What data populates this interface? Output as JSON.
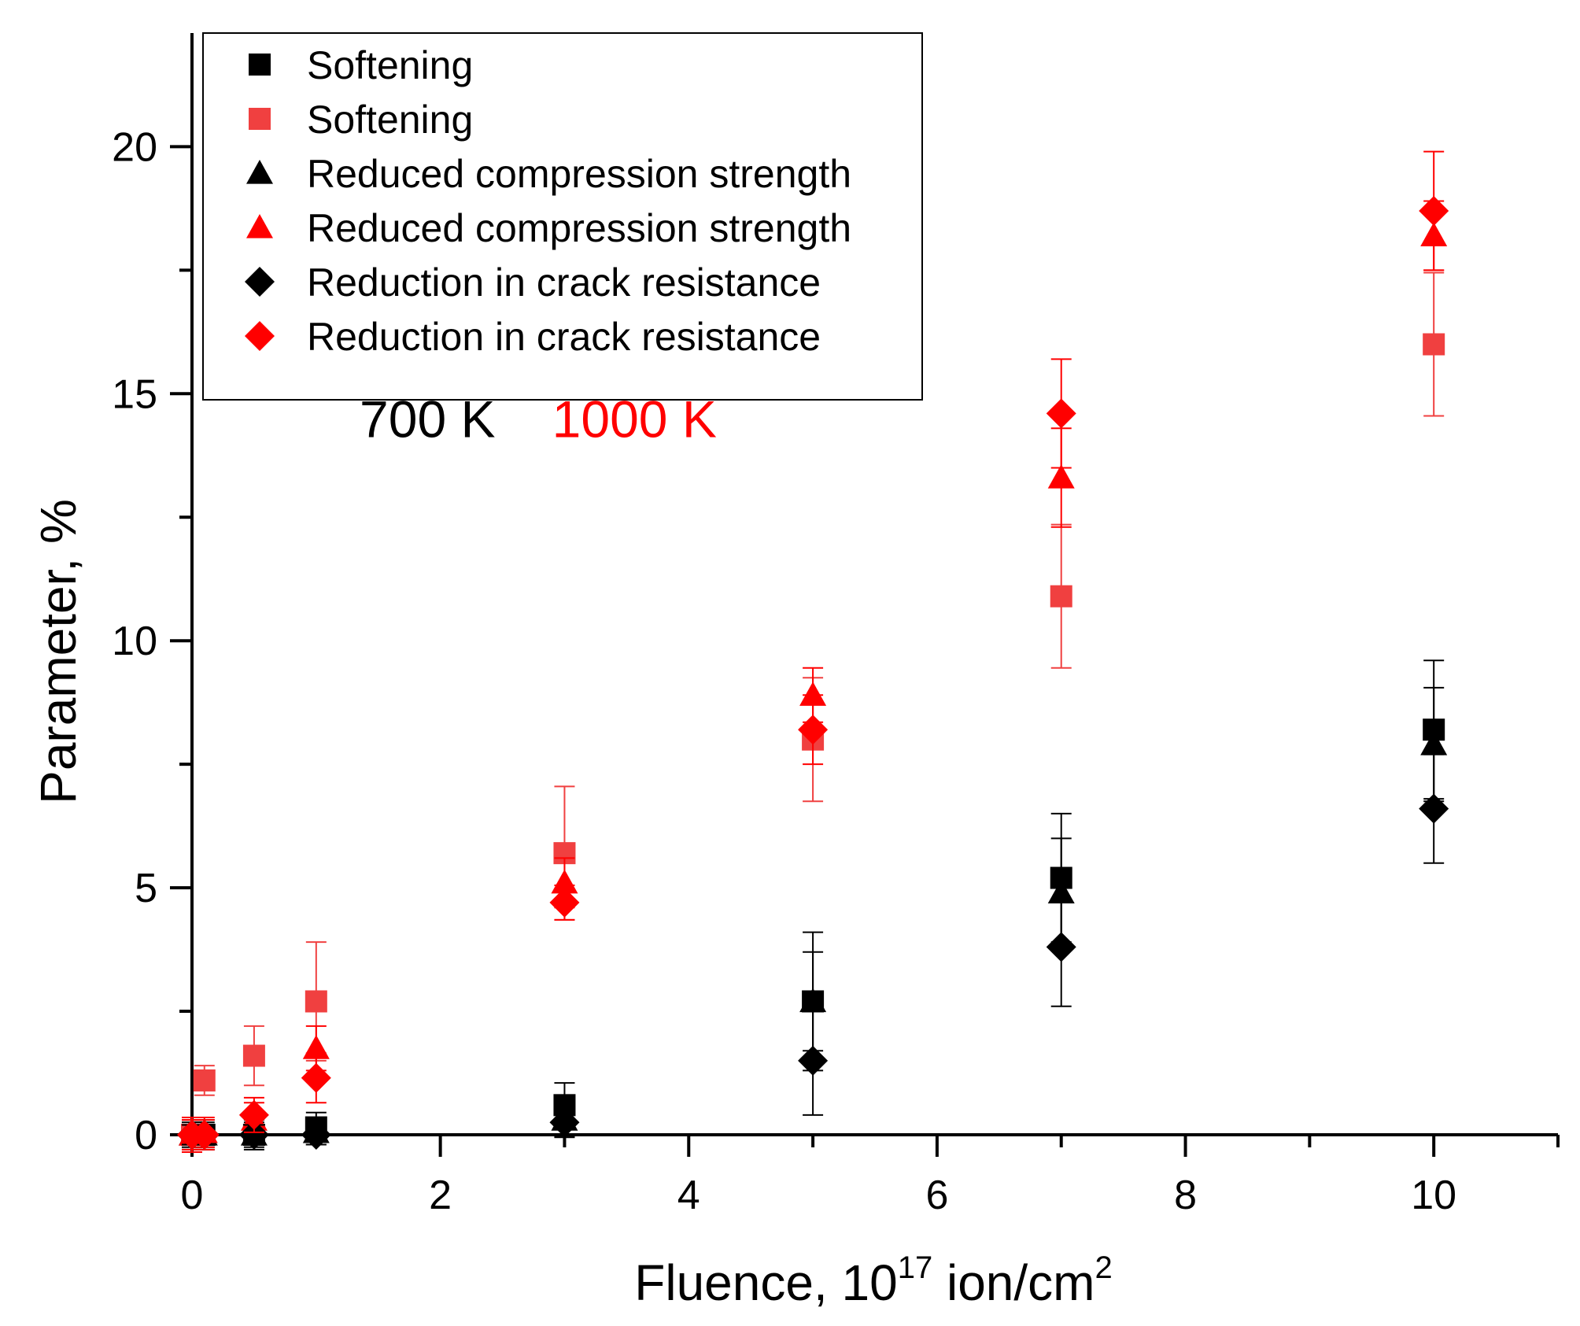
{
  "chart_data": {
    "type": "scatter",
    "xlabel": "Fluence, 10",
    "xlabel_sup": "17",
    "xlabel_mid": " ion/cm",
    "xlabel_sup2": "2",
    "ylabel": "Parameter, %",
    "xlim": [
      0,
      11
    ],
    "ylim": [
      0,
      22.3
    ],
    "x_ticks": [
      0,
      2,
      4,
      6,
      8,
      10
    ],
    "y_ticks": [
      0,
      5,
      10,
      15,
      20
    ],
    "grid": false,
    "legend_position": "top-left",
    "annotations": [
      {
        "text": "700 K",
        "color": "#000000",
        "x": 1.35,
        "y": 14.5
      },
      {
        "text": "1000 K",
        "color": "#ff0000",
        "x": 2.9,
        "y": 14.5
      }
    ],
    "series": [
      {
        "name": "Softening",
        "marker": "square",
        "color": "#000000",
        "x": [
          0,
          0.1,
          0.5,
          1,
          3,
          5,
          7,
          10
        ],
        "y": [
          0,
          0,
          0,
          0.15,
          0.6,
          2.7,
          5.2,
          8.2
        ],
        "err": [
          0.3,
          0.3,
          0.3,
          0.3,
          0.45,
          1.4,
          1.3,
          1.4
        ]
      },
      {
        "name": "Softening",
        "marker": "square",
        "color": "#f04040",
        "x": [
          0,
          0.1,
          0.5,
          1,
          3,
          5,
          7,
          10
        ],
        "y": [
          0,
          1.1,
          1.6,
          2.7,
          5.7,
          8.0,
          10.9,
          16.0
        ],
        "err": [
          0.3,
          0.3,
          0.6,
          1.2,
          1.35,
          1.25,
          1.45,
          1.45
        ]
      },
      {
        "name": "Reduced compression strength",
        "marker": "triangle",
        "color": "#000000",
        "x": [
          0,
          0.1,
          0.5,
          1,
          3,
          5,
          7,
          10
        ],
        "y": [
          0,
          0,
          0,
          0.05,
          0.3,
          2.7,
          4.9,
          7.9
        ],
        "err": [
          0.25,
          0.25,
          0.25,
          0.25,
          0.35,
          1.0,
          1.1,
          1.15
        ]
      },
      {
        "name": "Reduced compression strength",
        "marker": "triangle",
        "color": "#ff0000",
        "x": [
          0,
          0.1,
          0.5,
          1,
          3,
          5,
          7,
          10
        ],
        "y": [
          0,
          0.05,
          0.3,
          1.75,
          5.1,
          8.9,
          13.3,
          18.2
        ],
        "err": [
          0.3,
          0.3,
          0.35,
          0.45,
          0.5,
          0.55,
          1.0,
          0.7
        ]
      },
      {
        "name": "Reduction in crack resistance",
        "marker": "diamond",
        "color": "#000000",
        "x": [
          0,
          0.1,
          0.5,
          1,
          3,
          5,
          7,
          10
        ],
        "y": [
          0,
          0,
          0,
          0,
          0.25,
          1.5,
          3.8,
          6.6
        ],
        "err": [
          0.2,
          0.2,
          0.2,
          0.2,
          0.3,
          1.1,
          1.2,
          1.1
        ]
      },
      {
        "name": "Reduction in crack resistance",
        "marker": "diamond",
        "color": "#ff0000",
        "x": [
          0,
          0.1,
          0.5,
          1,
          3,
          5,
          7,
          10
        ],
        "y": [
          0,
          0,
          0.4,
          1.15,
          4.7,
          8.2,
          14.6,
          18.7
        ],
        "err": [
          0.35,
          0.3,
          0.35,
          0.5,
          0.35,
          0.7,
          1.1,
          1.2
        ]
      }
    ]
  }
}
